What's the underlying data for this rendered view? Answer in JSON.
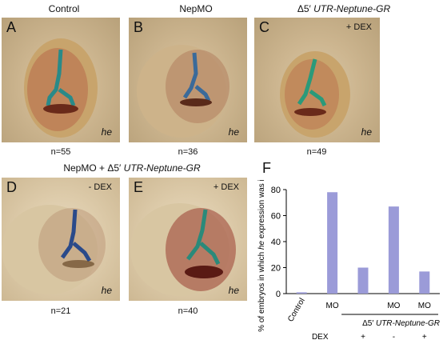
{
  "columns": {
    "control": "Control",
    "nepmo": "NepMO",
    "construct_prefix": "Δ5′",
    "construct_name": "UTR-Neptune-GR"
  },
  "row2_title": {
    "prefix": "NepMO + ",
    "delta": "Δ5′",
    "construct": " UTR-Neptune-GR"
  },
  "panels": [
    {
      "letter": "A",
      "gene": "he",
      "dex": "",
      "n": "n=55"
    },
    {
      "letter": "B",
      "gene": "he",
      "dex": "",
      "n": "n=36"
    },
    {
      "letter": "C",
      "gene": "he",
      "dex": "+ DEX",
      "n": "n=49"
    },
    {
      "letter": "D",
      "gene": "he",
      "dex": "- DEX",
      "n": "n=21"
    },
    {
      "letter": "E",
      "gene": "he",
      "dex": "+ DEX",
      "n": "n=40"
    }
  ],
  "chart_letter": "F",
  "chart_data": {
    "type": "bar",
    "categories": [
      "Control",
      "MO",
      "",
      "MO",
      "MO"
    ],
    "values": [
      1,
      78,
      20,
      67,
      17
    ],
    "ylabel_parts": [
      "% of embryos in which ",
      "he",
      " expression was inhibited"
    ],
    "ylim": [
      0,
      80
    ],
    "yticks": [
      "0",
      "20",
      "40",
      "60",
      "80"
    ],
    "bar_color": "#9b9bd8",
    "construct_label_prefix": "Δ5′",
    "construct_label_name": " UTR-Neptune-GR",
    "dex_label": "DEX",
    "dex_values": [
      "+",
      "-",
      "+"
    ]
  }
}
